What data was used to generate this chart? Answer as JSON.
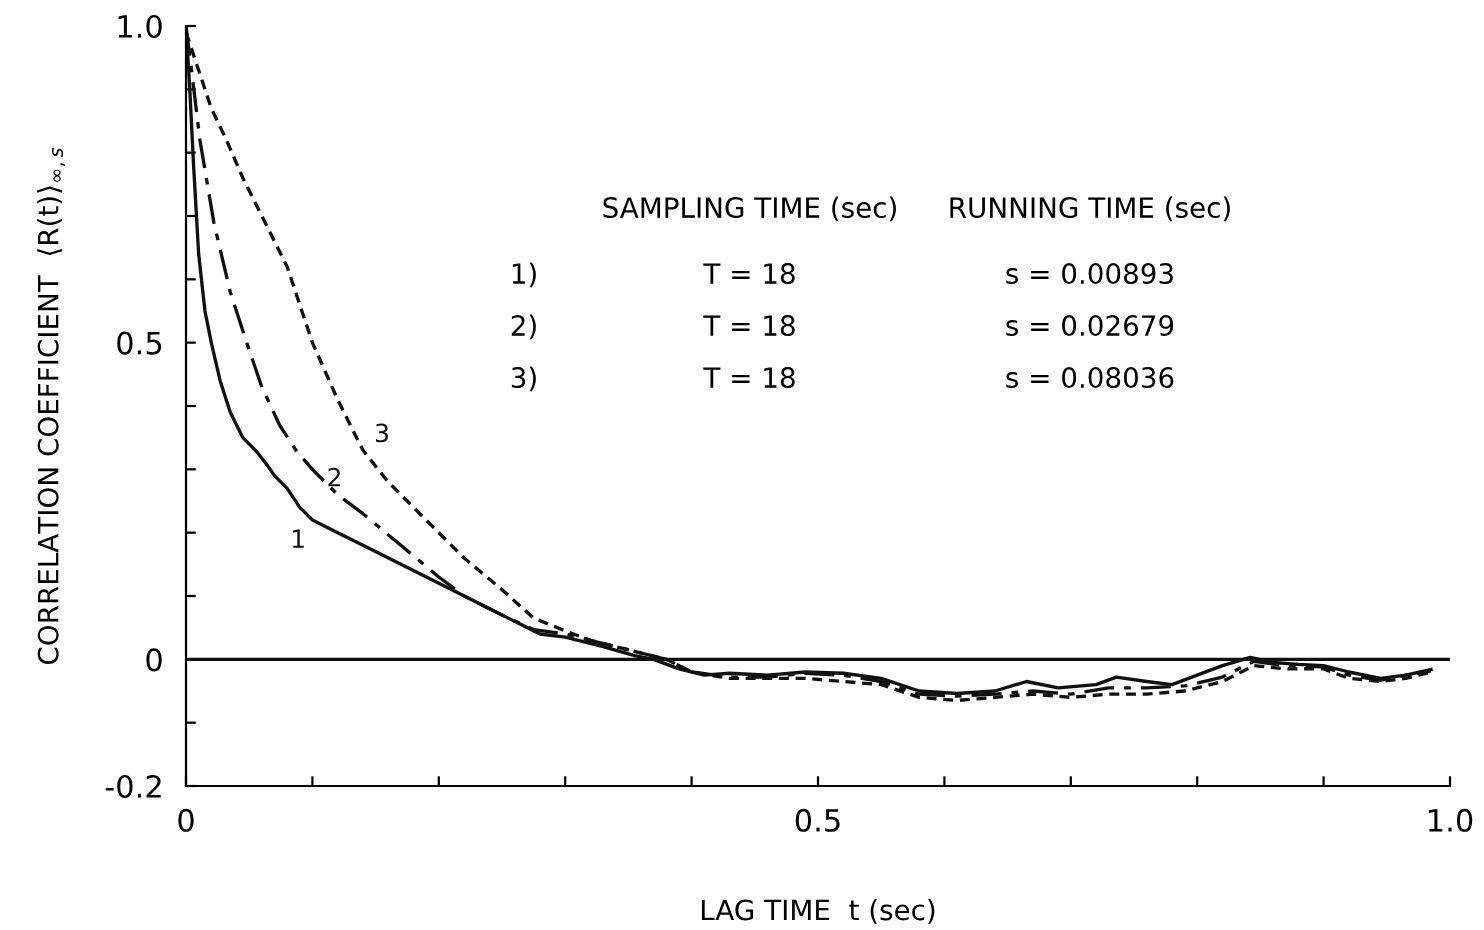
{
  "chart_data": {
    "type": "line",
    "xlabel": "LAG TIME  t (sec)",
    "ylabel": "CORRELATION COEFFICIENT  ⟨R(t)⟩$_{∞,s}$",
    "annotations": [
      "SAMPLING TIME (sec)",
      "RUNNING TIME (sec)",
      "1)",
      "T = 18",
      "s = 0.00893",
      "2)",
      "T = 18",
      "s = 0.02679",
      "3)",
      "T = 18",
      "s = 0.08036"
    ],
    "series": [
      {
        "name": "1",
        "color": "#111111",
        "line_style": "solid",
        "x": [
          0,
          0.003,
          0.006,
          0.01,
          0.015,
          0.02,
          0.027,
          0.035,
          0.045,
          0.055,
          0.063,
          0.07,
          0.08,
          0.09,
          0.1,
          0.12,
          0.14,
          0.17,
          0.2,
          0.23,
          0.26,
          0.28,
          0.3,
          0.33,
          0.355,
          0.37,
          0.39,
          0.41,
          0.43,
          0.46,
          0.49,
          0.52,
          0.55,
          0.58,
          0.61,
          0.64,
          0.665,
          0.69,
          0.72,
          0.736,
          0.76,
          0.78,
          0.8,
          0.82,
          0.842,
          0.86,
          0.88,
          0.9,
          0.92,
          0.945,
          0.965,
          0.985
        ],
        "values": [
          1.0,
          0.9,
          0.78,
          0.64,
          0.55,
          0.5,
          0.44,
          0.39,
          0.35,
          0.33,
          0.31,
          0.29,
          0.27,
          0.24,
          0.22,
          0.2,
          0.18,
          0.15,
          0.12,
          0.09,
          0.06,
          0.04,
          0.035,
          0.02,
          0.006,
          0.0,
          -0.015,
          -0.025,
          -0.022,
          -0.025,
          -0.02,
          -0.022,
          -0.03,
          -0.05,
          -0.054,
          -0.05,
          -0.035,
          -0.045,
          -0.04,
          -0.028,
          -0.035,
          -0.04,
          -0.025,
          -0.01,
          0.003,
          -0.005,
          -0.008,
          -0.01,
          -0.02,
          -0.03,
          -0.025,
          -0.016
        ]
      },
      {
        "name": "2",
        "color": "#111111",
        "line_style": "dashed",
        "x": [
          0,
          0.005,
          0.011,
          0.022,
          0.035,
          0.048,
          0.06,
          0.074,
          0.087,
          0.1,
          0.12,
          0.14,
          0.17,
          0.2,
          0.22,
          0.25,
          0.275,
          0.3,
          0.33,
          0.36,
          0.38,
          0.4,
          0.43,
          0.46,
          0.49,
          0.52,
          0.55,
          0.58,
          0.61,
          0.64,
          0.67,
          0.7,
          0.73,
          0.76,
          0.79,
          0.82,
          0.845,
          0.87,
          0.9,
          0.92,
          0.945,
          0.965,
          0.985
        ],
        "values": [
          1.0,
          0.92,
          0.82,
          0.69,
          0.58,
          0.5,
          0.43,
          0.37,
          0.33,
          0.3,
          0.26,
          0.23,
          0.18,
          0.13,
          0.1,
          0.07,
          0.047,
          0.04,
          0.025,
          0.01,
          0.0,
          -0.02,
          -0.028,
          -0.028,
          -0.022,
          -0.025,
          -0.035,
          -0.055,
          -0.058,
          -0.055,
          -0.05,
          -0.055,
          -0.045,
          -0.045,
          -0.042,
          -0.028,
          -0.003,
          -0.01,
          -0.012,
          -0.025,
          -0.033,
          -0.025,
          -0.018
        ]
      },
      {
        "name": "3",
        "color": "#111111",
        "line_style": "dotted",
        "x": [
          0,
          0.01,
          0.02,
          0.032,
          0.045,
          0.06,
          0.08,
          0.1,
          0.12,
          0.14,
          0.16,
          0.19,
          0.22,
          0.25,
          0.275,
          0.3,
          0.32,
          0.35,
          0.38,
          0.4,
          0.43,
          0.46,
          0.49,
          0.52,
          0.55,
          0.58,
          0.61,
          0.64,
          0.67,
          0.7,
          0.73,
          0.76,
          0.79,
          0.82,
          0.845,
          0.87,
          0.9,
          0.92,
          0.945,
          0.965,
          0.985
        ],
        "values": [
          0.99,
          0.93,
          0.87,
          0.82,
          0.76,
          0.7,
          0.62,
          0.5,
          0.41,
          0.33,
          0.28,
          0.22,
          0.16,
          0.11,
          0.065,
          0.045,
          0.03,
          0.015,
          0.0,
          -0.02,
          -0.03,
          -0.03,
          -0.03,
          -0.035,
          -0.04,
          -0.06,
          -0.065,
          -0.06,
          -0.055,
          -0.06,
          -0.055,
          -0.055,
          -0.05,
          -0.035,
          -0.01,
          -0.015,
          -0.015,
          -0.03,
          -0.035,
          -0.03,
          -0.02
        ]
      }
    ],
    "ref_lines": [
      {
        "axis": "y",
        "value": 0,
        "color": "#111111"
      }
    ],
    "xlim": [
      0,
      1
    ],
    "ylim": [
      -0.2,
      1.0
    ],
    "xticks": [
      0,
      {
        "value": 0.1,
        "label": null
      },
      {
        "value": 0.2,
        "label": null
      },
      {
        "value": 0.3,
        "label": null
      },
      {
        "value": 0.4,
        "label": null
      },
      0.5,
      {
        "value": 0.6,
        "label": null
      },
      {
        "value": 0.7,
        "label": null
      },
      {
        "value": 0.8,
        "label": null
      },
      {
        "value": 0.9,
        "label": null
      },
      {
        "value": 1,
        "label": "1.0"
      }
    ],
    "yticks": [
      {
        "value": -0.2,
        "label": "-0.2"
      },
      {
        "value": -0.1,
        "label": null
      },
      0,
      {
        "value": 0.1,
        "label": null
      },
      {
        "value": 0.2,
        "label": null
      },
      {
        "value": 0.3,
        "label": null
      },
      {
        "value": 0.4,
        "label": null
      },
      0.5,
      {
        "value": 0.6,
        "label": null
      },
      {
        "value": 0.7,
        "label": null
      },
      {
        "value": 0.8,
        "label": null
      },
      {
        "value": 0.9,
        "label": null
      },
      {
        "value": 1,
        "label": "1.0"
      }
    ],
    "grid": false,
    "legend": false
  }
}
